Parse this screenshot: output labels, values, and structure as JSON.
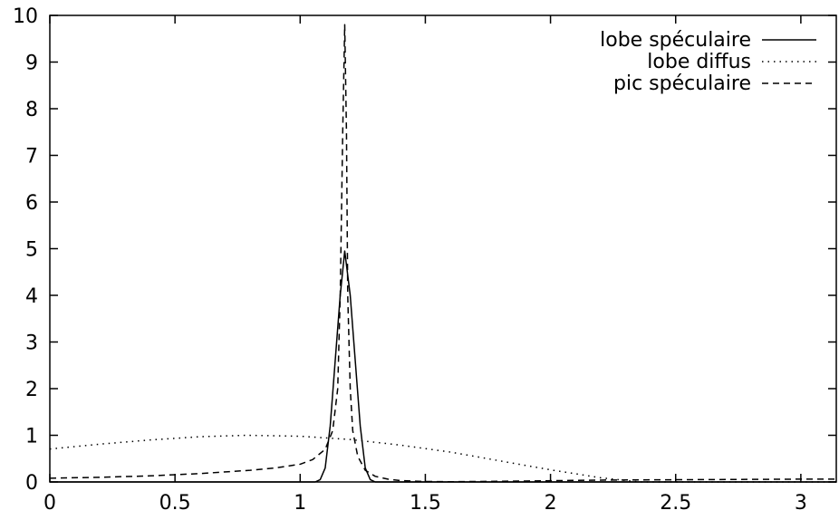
{
  "chart_data": {
    "type": "line",
    "title": "",
    "xlabel": "",
    "ylabel": "",
    "xlim": [
      0,
      3.14159
    ],
    "ylim": [
      0,
      10
    ],
    "x_ticks": [
      0,
      0.5,
      1,
      1.5,
      2,
      2.5,
      3
    ],
    "x_tick_labels": [
      "0",
      "0.5",
      "1",
      "1.5",
      "2",
      "2.5",
      "3"
    ],
    "y_ticks": [
      0,
      1,
      2,
      3,
      4,
      5,
      6,
      7,
      8,
      9,
      10
    ],
    "y_tick_labels": [
      "0",
      "1",
      "2",
      "3",
      "4",
      "5",
      "6",
      "7",
      "8",
      "9",
      "10"
    ],
    "grid": false,
    "legend_position": "top-right",
    "series": [
      {
        "name": "lobe spéculaire",
        "dash": "solid",
        "color": "#000000",
        "x": [
          0,
          1.06,
          1.08,
          1.1,
          1.12,
          1.14,
          1.16,
          1.178,
          1.2,
          1.22,
          1.24,
          1.26,
          1.28,
          1.3,
          3.14159
        ],
        "y": [
          0,
          0,
          0.05,
          0.3,
          1.2,
          2.6,
          4.0,
          4.95,
          4.0,
          2.6,
          1.2,
          0.3,
          0.05,
          0,
          0
        ]
      },
      {
        "name": "lobe diffus",
        "dash": "dotted",
        "color": "#000000",
        "x": [
          0,
          0.2,
          0.4,
          0.6,
          0.785,
          1.0,
          1.2,
          1.4,
          1.6,
          1.8,
          2.0,
          2.2,
          2.356,
          2.6,
          2.8,
          3.0,
          3.14159
        ],
        "y": [
          0.707,
          0.81,
          0.9,
          0.97,
          1.0,
          0.98,
          0.91,
          0.79,
          0.64,
          0.45,
          0.26,
          0.09,
          0.0,
          0.0,
          0.0,
          0.0,
          0.0
        ]
      },
      {
        "name": "pic spéculaire",
        "dash": "dashed",
        "color": "#000000",
        "x": [
          0,
          0.2,
          0.4,
          0.6,
          0.8,
          0.9,
          1.0,
          1.05,
          1.1,
          1.13,
          1.15,
          1.16,
          1.17,
          1.178,
          1.185,
          1.19,
          1.2,
          1.21,
          1.23,
          1.26,
          1.3,
          1.35,
          1.4,
          1.5,
          1.6,
          1.7,
          1.9,
          2.2,
          2.6,
          3.0,
          3.14159
        ],
        "y": [
          0.08,
          0.1,
          0.13,
          0.18,
          0.25,
          0.3,
          0.38,
          0.48,
          0.7,
          1.1,
          2.0,
          4.0,
          7.5,
          9.8,
          7.5,
          4.0,
          2.0,
          1.1,
          0.55,
          0.25,
          0.12,
          0.06,
          0.03,
          0.01,
          0.005,
          0.01,
          0.02,
          0.04,
          0.05,
          0.06,
          0.06
        ]
      }
    ]
  }
}
